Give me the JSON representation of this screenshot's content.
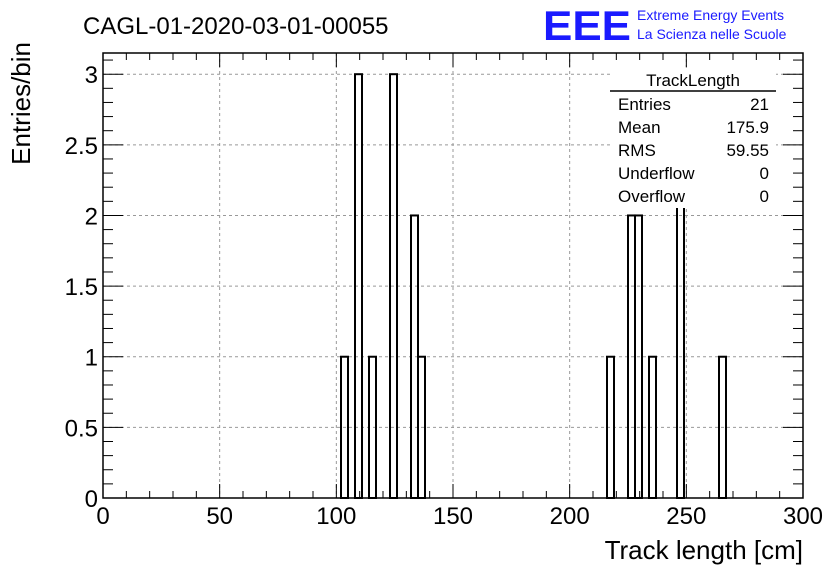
{
  "chart_data": {
    "type": "bar",
    "title": "CAGL-01-2020-03-01-00055",
    "xlabel": "Track length [cm]",
    "ylabel": "Entries/bin",
    "xlim": [
      0,
      300
    ],
    "ylim": [
      0,
      3.15
    ],
    "grid": true,
    "bin_width": 3,
    "x_ticks": [
      "0",
      "50",
      "100",
      "150",
      "200",
      "250",
      "300"
    ],
    "y_ticks": [
      "0",
      "0.5",
      "1",
      "1.5",
      "2",
      "2.5",
      "3"
    ],
    "bins": [
      {
        "x": 102,
        "value": 1
      },
      {
        "x": 108,
        "value": 3
      },
      {
        "x": 114,
        "value": 1
      },
      {
        "x": 123,
        "value": 3
      },
      {
        "x": 132,
        "value": 2
      },
      {
        "x": 135,
        "value": 1
      },
      {
        "x": 216,
        "value": 1
      },
      {
        "x": 225,
        "value": 2
      },
      {
        "x": 228,
        "value": 2
      },
      {
        "x": 234,
        "value": 1
      },
      {
        "x": 246,
        "value": 3
      },
      {
        "x": 264,
        "value": 1
      }
    ],
    "stats_box": {
      "title": "TrackLength",
      "rows": [
        {
          "label": "Entries",
          "value": "21"
        },
        {
          "label": "Mean",
          "value": "175.9"
        },
        {
          "label": "RMS",
          "value": "59.55"
        },
        {
          "label": "Underflow",
          "value": "0"
        },
        {
          "label": "Overflow",
          "value": "0"
        }
      ]
    },
    "colors": {
      "line": "#000000",
      "grid": "#999999",
      "logo": "#1a1aff"
    }
  },
  "logo": {
    "mark": "EEE",
    "line1": "Extreme Energy Events",
    "line2": "La Scienza nelle Scuole"
  }
}
